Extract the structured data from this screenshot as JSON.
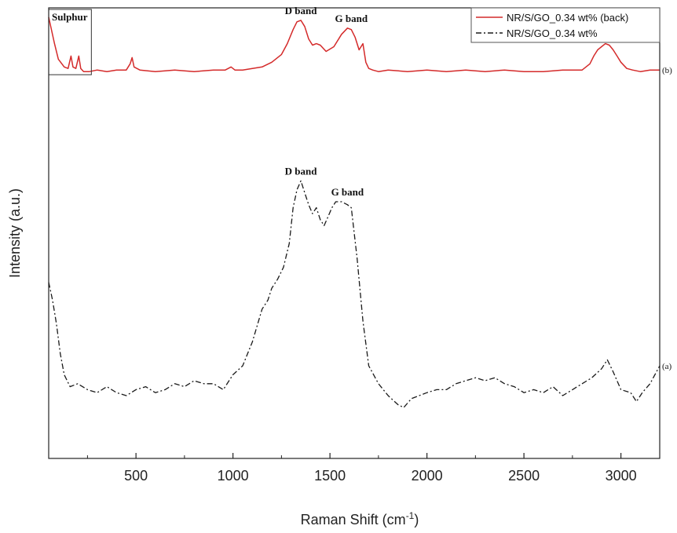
{
  "chart_data": {
    "type": "line",
    "xlabel": "Raman Shift (cm",
    "xlabel_sup": "-1",
    "xlabel_close": ")",
    "ylabel": "Intensity (a.u.)",
    "xlim": [
      50,
      3200
    ],
    "ylim": [
      0,
      100
    ],
    "xticks": [
      500,
      1000,
      1500,
      2000,
      2500,
      3000
    ],
    "xtick_labels": [
      "500",
      "1000",
      "1500",
      "2000",
      "2500",
      "3000"
    ],
    "grid": false,
    "legend_position": "top-right",
    "colors": {
      "b": "#d42a2a",
      "a": "#1a1a1a"
    },
    "series": [
      {
        "id": "b",
        "name": "NR/S/GO_0.34 wt% (back)",
        "end_label": "(b)",
        "line_style": "solid",
        "x": [
          50,
          80,
          100,
          130,
          150,
          165,
          175,
          190,
          205,
          215,
          230,
          260,
          300,
          350,
          400,
          450,
          470,
          480,
          490,
          520,
          600,
          700,
          800,
          900,
          960,
          990,
          1010,
          1050,
          1100,
          1150,
          1200,
          1250,
          1280,
          1310,
          1330,
          1350,
          1370,
          1390,
          1410,
          1430,
          1450,
          1480,
          1520,
          1560,
          1590,
          1610,
          1630,
          1650,
          1670,
          1685,
          1700,
          1720,
          1750,
          1800,
          1900,
          2000,
          2100,
          2200,
          2300,
          2400,
          2500,
          2600,
          2700,
          2800,
          2840,
          2860,
          2880,
          2900,
          2920,
          2940,
          2960,
          2980,
          3000,
          3030,
          3060,
          3100,
          3150,
          3200
        ],
        "y": [
          95,
          78,
          68,
          63,
          62,
          70,
          63,
          62,
          70,
          62,
          60,
          60,
          61,
          60,
          61,
          61,
          65,
          69,
          63,
          61,
          60,
          61,
          60,
          61,
          61,
          63,
          61,
          61,
          62,
          63,
          66,
          71,
          78,
          87,
          92,
          93,
          89,
          81,
          77,
          78,
          77,
          73,
          76,
          84,
          88,
          87,
          82,
          74,
          78,
          66,
          62,
          61,
          60,
          61,
          60,
          61,
          60,
          61,
          60,
          61,
          60,
          60,
          61,
          61,
          65,
          70,
          74,
          76,
          78,
          77,
          74,
          70,
          66,
          62,
          61,
          60,
          61,
          61
        ]
      },
      {
        "id": "a",
        "name": "NR/S/GO_0.34 wt%",
        "end_label": "(a)",
        "line_style": "dash-dot",
        "x": [
          50,
          70,
          90,
          110,
          130,
          160,
          200,
          250,
          300,
          350,
          400,
          450,
          500,
          550,
          600,
          650,
          700,
          750,
          800,
          850,
          900,
          950,
          1000,
          1050,
          1100,
          1150,
          1180,
          1200,
          1230,
          1260,
          1290,
          1310,
          1330,
          1350,
          1370,
          1390,
          1410,
          1430,
          1450,
          1470,
          1490,
          1510,
          1530,
          1560,
          1590,
          1610,
          1640,
          1670,
          1700,
          1750,
          1800,
          1850,
          1880,
          1920,
          1960,
          2000,
          2050,
          2100,
          2150,
          2200,
          2250,
          2300,
          2350,
          2400,
          2450,
          2500,
          2550,
          2600,
          2650,
          2700,
          2750,
          2800,
          2850,
          2900,
          2930,
          2960,
          3000,
          3050,
          3080,
          3110,
          3150,
          3200
        ],
        "y": [
          58,
          52,
          44,
          34,
          27,
          23,
          24,
          22,
          21,
          23,
          21,
          20,
          22,
          23,
          21,
          22,
          24,
          23,
          25,
          24,
          24,
          22,
          27,
          30,
          38,
          49,
          52,
          56,
          59,
          63,
          71,
          83,
          89,
          92,
          88,
          84,
          81,
          83,
          79,
          77,
          80,
          83,
          85,
          85,
          84,
          83,
          66,
          45,
          30,
          24,
          20,
          17,
          16,
          19,
          20,
          21,
          22,
          22,
          24,
          25,
          26,
          25,
          26,
          24,
          23,
          21,
          22,
          21,
          23,
          20,
          22,
          24,
          26,
          29,
          32,
          28,
          22,
          21,
          18,
          21,
          24,
          30
        ]
      }
    ],
    "annotations": [
      {
        "text": "D band",
        "series": "b",
        "x": 1350,
        "y": 93
      },
      {
        "text": "G band",
        "series": "b",
        "x": 1610,
        "y": 88
      },
      {
        "text": "D band",
        "series": "a",
        "x": 1350,
        "y": 92
      },
      {
        "text": "G band",
        "series": "a",
        "x": 1590,
        "y": 85
      }
    ],
    "region_box": {
      "label": "Sulphur",
      "x_range": [
        50,
        270
      ],
      "y_range": [
        58,
        100
      ]
    }
  }
}
